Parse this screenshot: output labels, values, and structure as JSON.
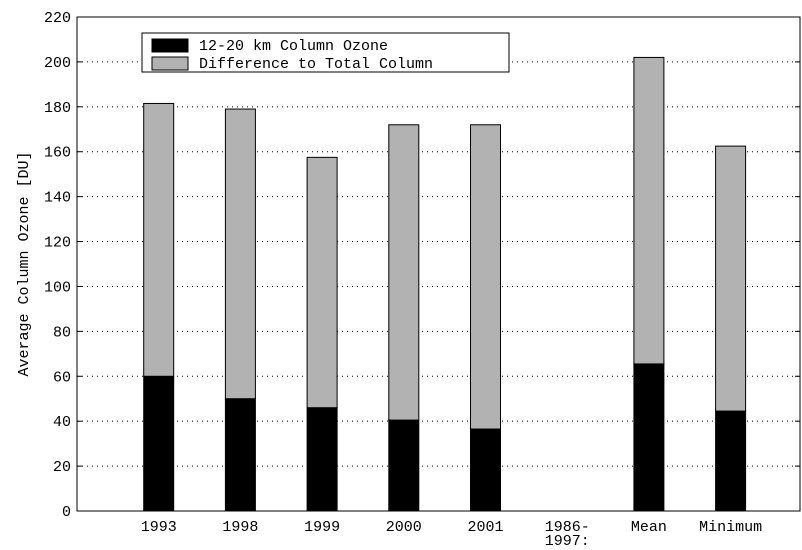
{
  "chart_data": {
    "type": "stacked_bar",
    "ylabel": "Average Column Ozone [DU]",
    "categories": [
      "1993",
      "1998",
      "1999",
      "2000",
      "2001",
      "1986-\n1997:",
      "Mean",
      "Minimum"
    ],
    "series": [
      {
        "name": "12-20 km Column Ozone",
        "color": "#000000",
        "values": [
          60,
          50,
          46,
          40.5,
          36.5,
          null,
          65.5,
          44.5
        ]
      },
      {
        "name": "Difference to Total Column",
        "color": "#b2b2b2",
        "values": [
          121.5,
          129,
          111.5,
          131.5,
          135.5,
          null,
          136.5,
          118
        ]
      }
    ],
    "ylim": [
      0,
      220
    ],
    "yticks": [
      0,
      20,
      40,
      60,
      80,
      100,
      120,
      140,
      160,
      180,
      200,
      220
    ],
    "grid": true,
    "legend": "upper left"
  }
}
